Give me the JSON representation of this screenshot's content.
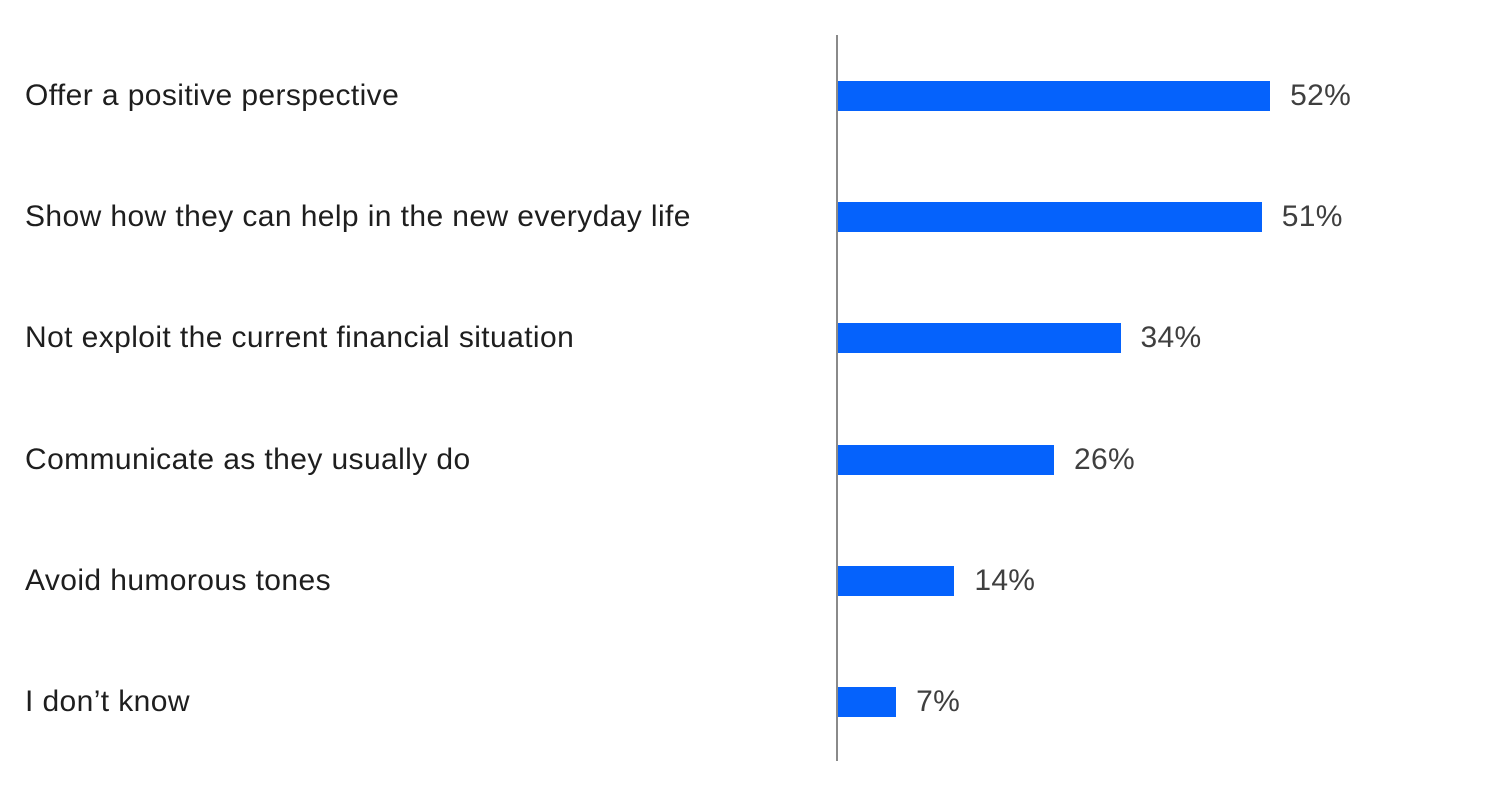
{
  "chart_data": {
    "type": "bar",
    "orientation": "horizontal",
    "title": "",
    "xlabel": "",
    "ylabel": "",
    "categories": [
      "Offer a positive perspective",
      "Show how they can help in the new everyday life",
      "Not exploit the current financial situation",
      "Communicate as they usually do",
      "Avoid humorous tones",
      "I don’t know"
    ],
    "values": [
      52,
      51,
      34,
      26,
      14,
      7
    ],
    "value_labels": [
      "52%",
      "51%",
      "34%",
      "26%",
      "14%",
      "7%"
    ],
    "xlim": [
      0,
      60
    ],
    "grid": false,
    "legend": false,
    "bar_color": "#0562fc",
    "axis_line_color": "#8a8a8a",
    "category_label_color": "#1e1e1e",
    "value_label_color": "#3f3f3f",
    "background_color": "#ffffff"
  }
}
